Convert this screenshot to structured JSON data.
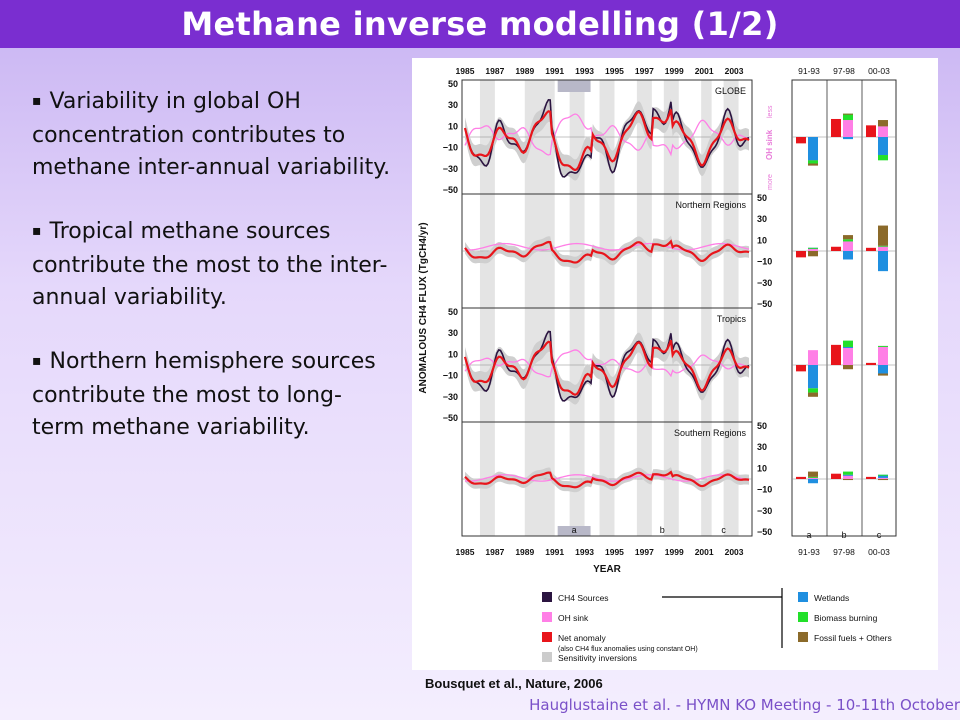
{
  "slide": {
    "title": "Methane inverse modelling (1/2)",
    "bullets": [
      "Variability in global OH concentration contributes to methane inter-annual variability.",
      "Tropical methane sources contribute the most to the inter-annual variability.",
      "Northern hemisphere sources contribute the most to long-term methane variability."
    ],
    "bullet_marker": "▪",
    "caption": "Bousquet et al., Nature, 2006",
    "footer": "Hauglustaine et al. - HYMN KO Meeting - 10-11th October"
  },
  "figure": {
    "colors": {
      "sources": "#2b1440",
      "oh_sink": "#ff7fe6",
      "net_anomaly": "#e8151b",
      "sensitivity": "#cccccc",
      "wetlands": "#1f8fe0",
      "biomass": "#22e02a",
      "fossil": "#8b6a2a"
    },
    "x_ticks": [
      "1985",
      "1987",
      "1989",
      "1991",
      "1993",
      "1995",
      "1997",
      "1999",
      "2001",
      "2003"
    ],
    "xlabel": "YEAR",
    "ylabel": "ANOMALOUS  CH4  FLUX (TgCH4/yr)",
    "y_ticks": [
      "50",
      "30",
      "10",
      "−10",
      "−30",
      "−50"
    ],
    "period_labels": [
      "a",
      "b",
      "c"
    ],
    "bar_headers": [
      "91-93",
      "97-98",
      "00-03"
    ],
    "panels": [
      "GLOBE",
      "Northern Regions",
      "Tropics",
      "Southern Regions"
    ],
    "oh_sink_labels": {
      "less": "less",
      "sink": "OH sink",
      "more": "more"
    },
    "legend_left": [
      {
        "label": "CH4 Sources",
        "color": "#2b1440"
      },
      {
        "label": "OH sink",
        "color": "#ff7fe6"
      },
      {
        "label": "Net anomaly",
        "color": "#e8151b",
        "note": "(also CH4 flux anomalies using constant OH)"
      },
      {
        "label": "Sensitivity inversions",
        "color": "#cccccc"
      }
    ],
    "legend_right": [
      {
        "label": "Wetlands",
        "color": "#1f8fe0"
      },
      {
        "label": "Biomass burning",
        "color": "#22e02a"
      },
      {
        "label": "Fossil fuels + Others",
        "color": "#8b6a2a"
      }
    ],
    "bar_chart_data": [
      {
        "panel": "GLOBE",
        "groups": [
          {
            "period": "91-93",
            "net": -6,
            "sink": [
              -25
            ],
            "src": [
              -22,
              -3,
              -2
            ]
          },
          {
            "period": "97-98",
            "net": 17,
            "sink": [
              16
            ],
            "src": [
              -2,
              6,
              0
            ]
          },
          {
            "period": "00-03",
            "net": 11,
            "sink": [
              10
            ],
            "src": [
              -17,
              -5,
              6
            ]
          }
        ]
      },
      {
        "panel": "Northern Regions",
        "groups": [
          {
            "period": "91-93",
            "net": -6,
            "sink": [
              3
            ],
            "src": [
              0,
              0,
              -5
            ]
          },
          {
            "period": "97-98",
            "net": 4,
            "sink": [
              9
            ],
            "src": [
              -8,
              2,
              4
            ]
          },
          {
            "period": "00-03",
            "net": 3,
            "sink": [
              5
            ],
            "src": [
              -19,
              0,
              19
            ]
          }
        ]
      },
      {
        "panel": "Tropics",
        "groups": [
          {
            "period": "91-93",
            "net": -6,
            "sink": [
              14
            ],
            "src": [
              -22,
              -4,
              -4
            ]
          },
          {
            "period": "97-98",
            "net": 19,
            "sink": [
              17
            ],
            "src": [
              0,
              6,
              -4
            ]
          },
          {
            "period": "00-03",
            "net": 2,
            "sink": [
              18
            ],
            "src": [
              -8,
              0,
              -2
            ]
          }
        ]
      },
      {
        "panel": "Southern Regions",
        "groups": [
          {
            "period": "91-93",
            "net": 2,
            "sink": [
              2
            ],
            "src": [
              -4,
              0,
              5
            ]
          },
          {
            "period": "97-98",
            "net": 5,
            "sink": [
              4
            ],
            "src": [
              0,
              3,
              -1
            ]
          },
          {
            "period": "00-03",
            "net": 2,
            "sink": [
              1
            ],
            "src": [
              3,
              0,
              -1
            ]
          }
        ]
      }
    ]
  }
}
